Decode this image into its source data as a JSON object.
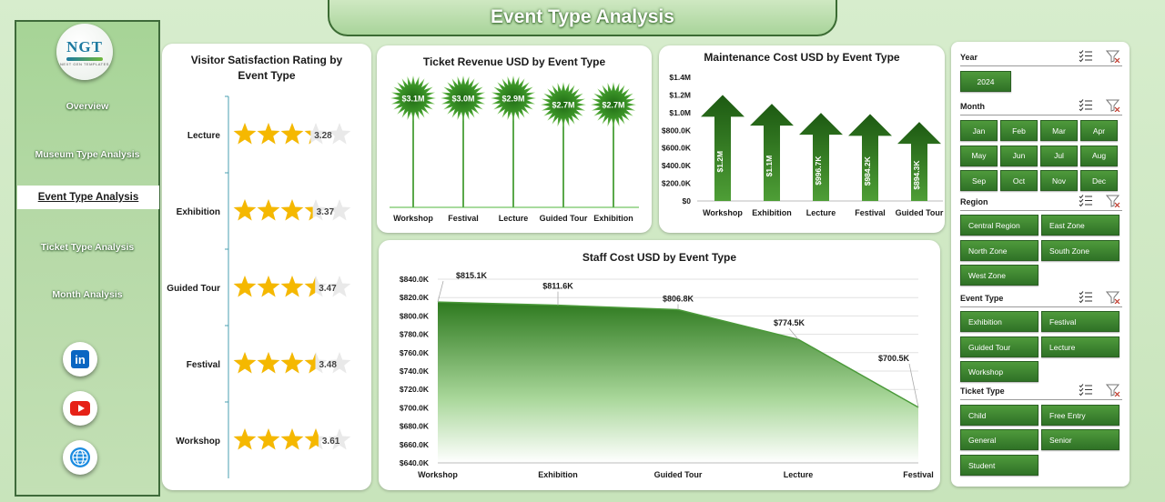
{
  "page_title": "Event Type Analysis",
  "logo": {
    "main": "NGT",
    "sub": "NEXT GEN TEMPLATES"
  },
  "nav": [
    {
      "label": "Overview",
      "active": false
    },
    {
      "label": "Museum Type Analysis",
      "active": false
    },
    {
      "label": "Event Type Analysis",
      "active": true
    },
    {
      "label": "Ticket Type Analysis",
      "active": false
    },
    {
      "label": "Month Analysis",
      "active": false
    }
  ],
  "social": [
    {
      "icon": "linkedin-icon",
      "label": "in",
      "color": "#0a66c2"
    },
    {
      "icon": "youtube-icon",
      "label": "",
      "color": "#e62117"
    },
    {
      "icon": "globe-icon",
      "label": "",
      "color": "#1b8be0"
    }
  ],
  "colors": {
    "accent_green": "#2f7226",
    "star_gold": "#f5b800",
    "dark_green": "#2d6a20"
  },
  "charts": {
    "satisfaction": {
      "title": "Visitor Satisfaction Rating by Event Type",
      "chart_data": {
        "type": "bar",
        "categories": [
          "Lecture",
          "Exhibition",
          "Guided Tour",
          "Festival",
          "Workshop"
        ],
        "values": [
          3.28,
          3.37,
          3.47,
          3.48,
          3.61
        ],
        "labels": [
          "3.28",
          "3.37",
          "3.47",
          "3.48",
          "3.61"
        ],
        "max": 5
      }
    },
    "ticket_revenue": {
      "title": "Ticket Revenue USD by Event Type",
      "chart_data": {
        "type": "bar",
        "categories": [
          "Workshop",
          "Festival",
          "Lecture",
          "Guided Tour",
          "Exhibition"
        ],
        "values": [
          3100000,
          3000000,
          2900000,
          2700000,
          2700000
        ],
        "labels": [
          "$3.1M",
          "$3.0M",
          "$2.9M",
          "$2.7M",
          "$2.7M"
        ]
      }
    },
    "maintenance": {
      "title": "Maintenance Cost USD by Event Type",
      "chart_data": {
        "type": "bar",
        "categories": [
          "Workshop",
          "Exhibition",
          "Lecture",
          "Festival",
          "Guided Tour"
        ],
        "values": [
          1200000,
          1100000,
          996700,
          984200,
          894300
        ],
        "labels": [
          "$1.2M",
          "$1.1M",
          "$996.7K",
          "$984.2K",
          "$894.3K"
        ],
        "yticks": [
          "$1.4M",
          "$1.2M",
          "$1.0M",
          "$800.0K",
          "$600.0K",
          "$400.0K",
          "$200.0K",
          "$0"
        ],
        "ylim": [
          0,
          1400000
        ]
      }
    },
    "staff_cost": {
      "title": "Staff Cost USD by Event Type",
      "chart_data": {
        "type": "area",
        "categories": [
          "Workshop",
          "Exhibition",
          "Guided Tour",
          "Lecture",
          "Festival"
        ],
        "values": [
          815100,
          811600,
          806800,
          774500,
          700500
        ],
        "labels": [
          "$815.1K",
          "$811.6K",
          "$806.8K",
          "$774.5K",
          "$700.5K"
        ],
        "yticks": [
          "$840.0K",
          "$820.0K",
          "$800.0K",
          "$780.0K",
          "$760.0K",
          "$740.0K",
          "$720.0K",
          "$700.0K",
          "$680.0K",
          "$660.0K",
          "$640.0K"
        ],
        "ylim": [
          640000,
          840000
        ]
      }
    }
  },
  "slicers": {
    "year": {
      "title": "Year",
      "items": [
        "2024"
      ]
    },
    "month": {
      "title": "Month",
      "items": [
        "Jan",
        "Feb",
        "Mar",
        "Apr",
        "May",
        "Jun",
        "Jul",
        "Aug",
        "Sep",
        "Oct",
        "Nov",
        "Dec"
      ]
    },
    "region": {
      "title": "Region",
      "items": [
        "Central Region",
        "East Zone",
        "North Zone",
        "South Zone",
        "West Zone"
      ]
    },
    "event_type": {
      "title": "Event Type",
      "items": [
        "Exhibition",
        "Festival",
        "Guided Tour",
        "Lecture",
        "Workshop"
      ]
    },
    "ticket_type": {
      "title": "Ticket Type",
      "items": [
        "Child",
        "Free Entry",
        "General",
        "Senior",
        "Student"
      ]
    }
  }
}
